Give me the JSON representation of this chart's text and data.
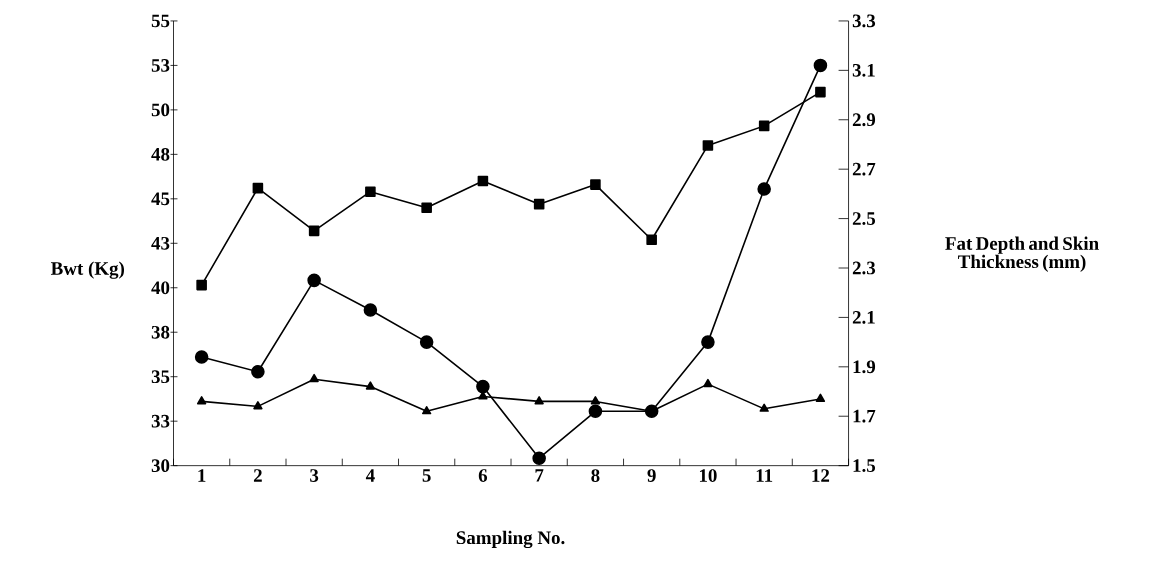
{
  "chart_data": {
    "type": "line",
    "xlabel": "Sampling No.",
    "ylabel": "Bwt (Kg)",
    "y2label": "Fat Depth and Skin Thickness (mm)",
    "categories": [
      "1",
      "2",
      "3",
      "4",
      "5",
      "6",
      "7",
      "8",
      "9",
      "10",
      "11",
      "12"
    ],
    "series": [
      {
        "color": "#000000",
        "marker": "square",
        "values": [
          40.15,
          45.6,
          43.2,
          45.4,
          44.5,
          46.0,
          44.7,
          45.8,
          42.7,
          48.0,
          49.1,
          51.0
        ]
      },
      {
        "color": "#000000",
        "marker": "circle",
        "axis": "y2",
        "values": [
          1.94,
          1.88,
          2.25,
          2.13,
          2.0,
          1.82,
          1.53,
          1.72,
          1.72,
          2.0,
          2.62,
          3.12
        ]
      },
      {
        "color": "#000000",
        "marker": "triangle",
        "axis": "y2",
        "values": [
          1.76,
          1.74,
          1.85,
          1.82,
          1.72,
          1.78,
          1.76,
          1.76,
          1.72,
          1.83,
          1.73,
          1.77
        ]
      }
    ],
    "ylim": [
      30,
      55
    ],
    "yticks": [
      30,
      {
        "value": 32.5,
        "label": "33"
      },
      35,
      {
        "value": 37.5,
        "label": "38"
      },
      40,
      {
        "value": 42.5,
        "label": "43"
      },
      45,
      {
        "value": 47.5,
        "label": "48"
      },
      50,
      {
        "value": 52.5,
        "label": "53"
      },
      55
    ],
    "y2lim": [
      1.5,
      3.3
    ],
    "y2ticks": [
      1.5,
      1.7,
      1.9,
      2.1,
      2.3,
      2.5,
      2.7,
      2.9,
      3.1,
      3.3
    ],
    "grid": false,
    "line_style": "solid"
  }
}
